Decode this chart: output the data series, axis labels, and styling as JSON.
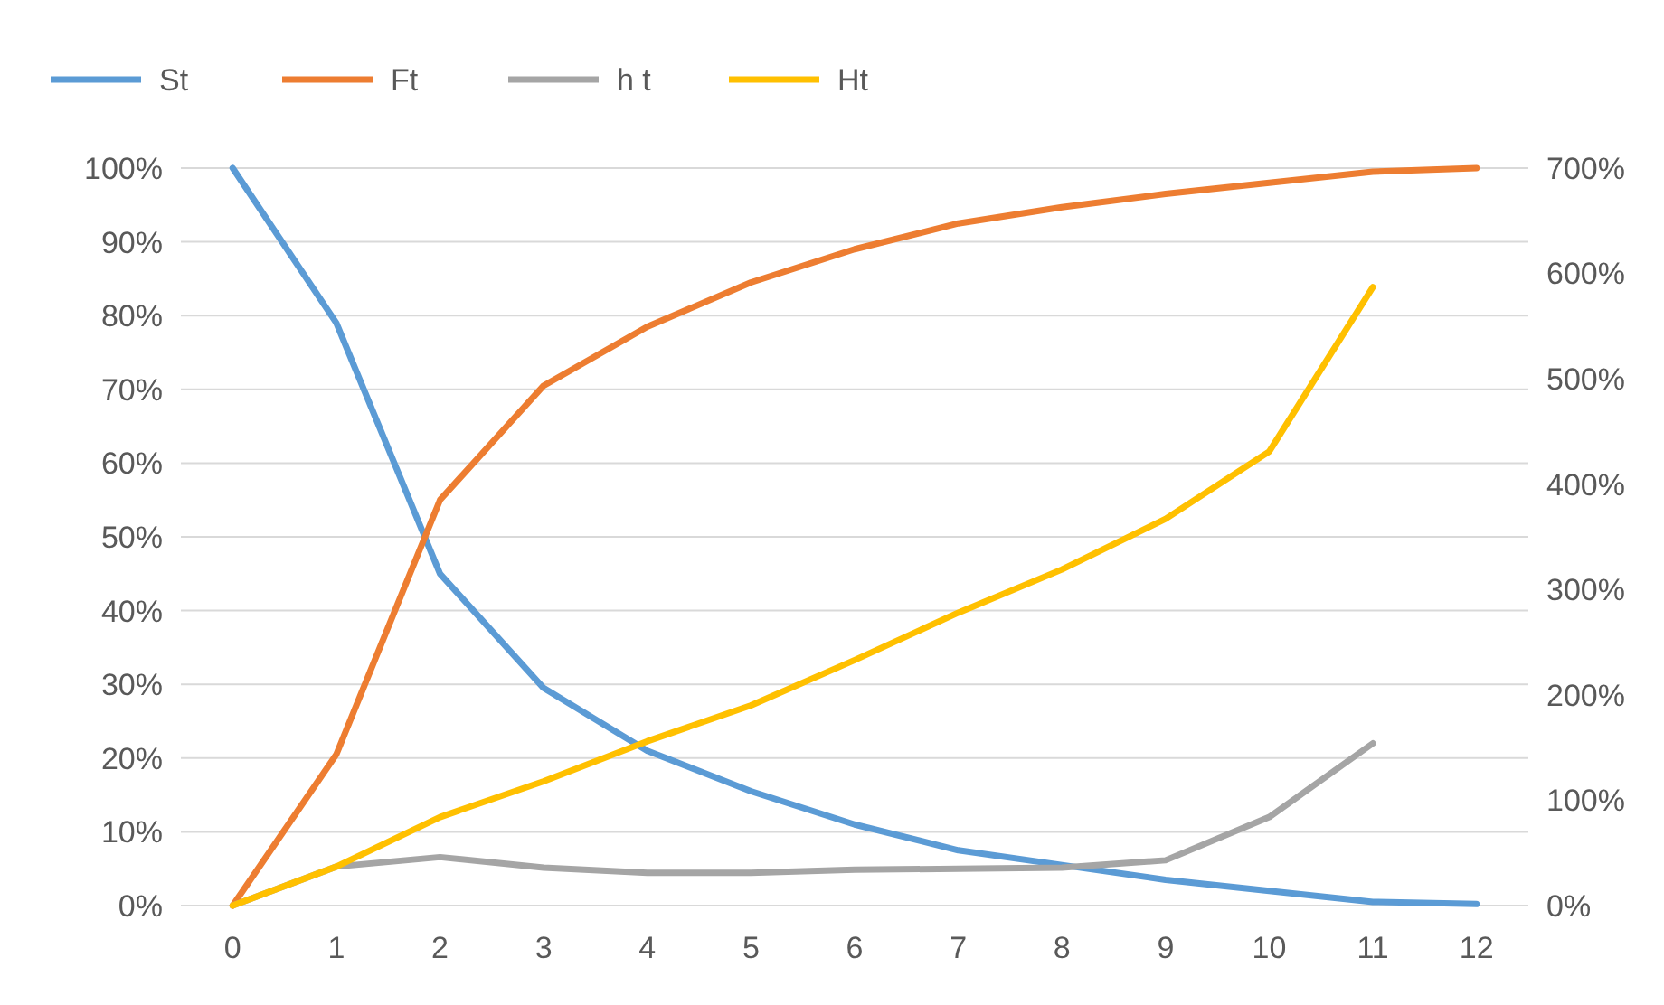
{
  "chart_data": {
    "type": "line",
    "x": [
      0,
      1,
      2,
      3,
      4,
      5,
      6,
      7,
      8,
      9,
      10,
      11,
      12
    ],
    "xlim": [
      -0.5,
      12.5
    ],
    "xticks": [
      0,
      1,
      2,
      3,
      4,
      5,
      6,
      7,
      8,
      9,
      10,
      11,
      12
    ],
    "series": [
      {
        "name": "St",
        "color": "#5b9bd5",
        "values": [
          100,
          79,
          45,
          29.5,
          21,
          15.5,
          11,
          7.5,
          5.5,
          3.5,
          2,
          0.5,
          0.2
        ]
      },
      {
        "name": "Ft",
        "color": "#ed7d31",
        "values": [
          0,
          20.5,
          55,
          70.5,
          78.5,
          84.5,
          89,
          92.5,
          94.7,
          96.5,
          98,
          99.5,
          100
        ]
      },
      {
        "name": "h t",
        "color": "#a5a5a5",
        "axis": "y2",
        "values": [
          0,
          37,
          46,
          36,
          31,
          31,
          34,
          35,
          36,
          43,
          84,
          154,
          null
        ]
      },
      {
        "name": "Ht",
        "color": "#ffc000",
        "axis": "y2",
        "values": [
          0,
          37,
          84,
          118,
          156,
          190,
          233,
          278,
          319,
          367,
          431,
          587,
          null
        ]
      }
    ],
    "ylim": [
      0,
      100
    ],
    "yticks": [
      {
        "value": 0,
        "label": "0%"
      },
      {
        "value": 10,
        "label": "10%"
      },
      {
        "value": 20,
        "label": "20%"
      },
      {
        "value": 30,
        "label": "30%"
      },
      {
        "value": 40,
        "label": "40%"
      },
      {
        "value": 50,
        "label": "50%"
      },
      {
        "value": 60,
        "label": "60%"
      },
      {
        "value": 70,
        "label": "70%"
      },
      {
        "value": 80,
        "label": "80%"
      },
      {
        "value": 90,
        "label": "90%"
      },
      {
        "value": 100,
        "label": "100%"
      }
    ],
    "y2lim": [
      0,
      700
    ],
    "y2ticks": [
      {
        "value": 0,
        "label": "0%"
      },
      {
        "value": 100,
        "label": "100%"
      },
      {
        "value": 200,
        "label": "200%"
      },
      {
        "value": 300,
        "label": "300%"
      },
      {
        "value": 400,
        "label": "400%"
      },
      {
        "value": 500,
        "label": "500%"
      },
      {
        "value": 600,
        "label": "600%"
      },
      {
        "value": 700,
        "label": "700%"
      }
    ],
    "grid": "y",
    "legend": "top left",
    "marker": "none",
    "line_style": "solid"
  }
}
